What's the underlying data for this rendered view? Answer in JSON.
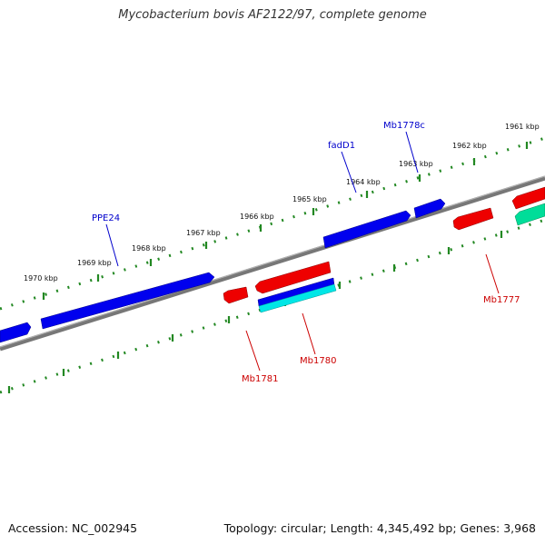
{
  "title": "Mycobacterium bovis AF2122/97, complete genome",
  "footer": {
    "accession": "Accession: NC_002945",
    "summary": "Topology: circular; Length: 4,345,492 bp; Genes: 3,968"
  },
  "ruler_labels": [
    "1970 kbp",
    "1969 kbp",
    "1968 kbp",
    "1967 kbp",
    "1966 kbp",
    "1965 kbp",
    "1964 kbp",
    "1963 kbp",
    "1962 kbp",
    "1961 kbp"
  ],
  "gene_labels": {
    "forward": [
      "PPE24",
      "fadD1",
      "Mb1778c"
    ],
    "reverse": [
      "Mb1781",
      "Mb1780",
      "Mb1777"
    ]
  },
  "colors": {
    "forward_gene": "#0000ee",
    "reverse_gene": "#ee0000",
    "cyan_gene": "#00e6e6",
    "teal_gene": "#00dd99",
    "backbone": "#808080",
    "ruler_tick": "#228822",
    "forward_label": "#0000cc",
    "reverse_label": "#cc0000"
  }
}
